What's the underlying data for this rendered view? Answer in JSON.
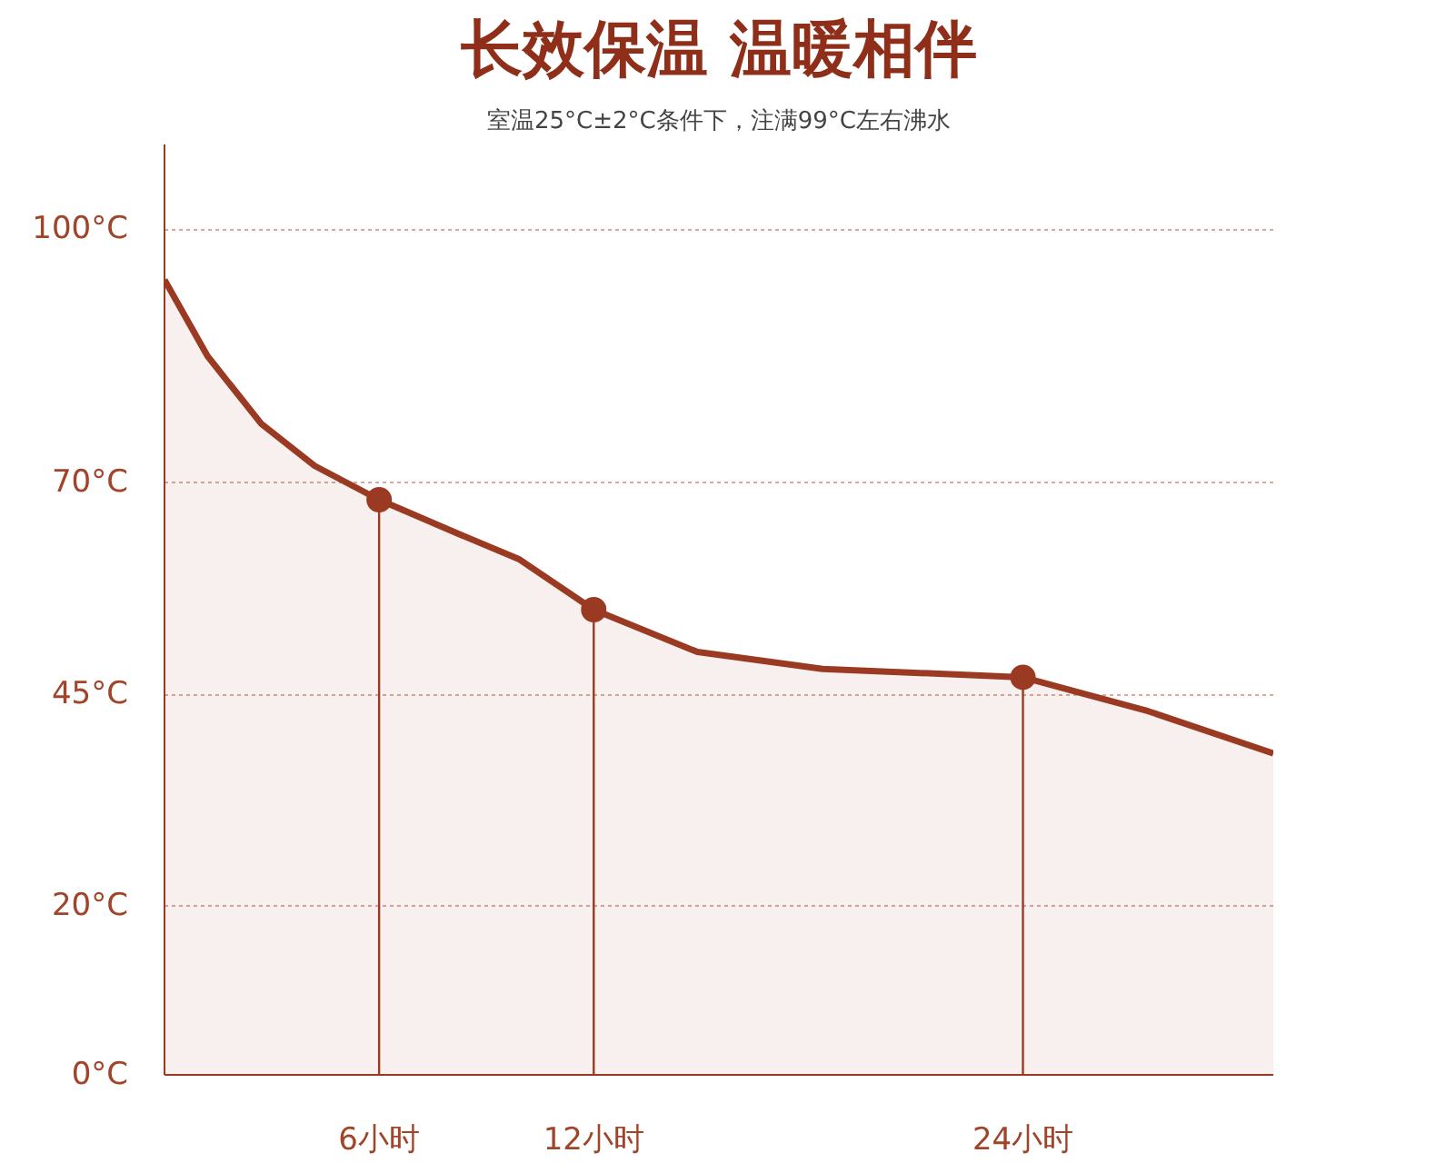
{
  "chart_data": {
    "type": "area",
    "title": "长效保温 温暖相伴",
    "subtitle": "室温25°C±2°C条件下，注满99°C左右沸水",
    "xlim": [
      0,
      31
    ],
    "ylim": [
      0,
      110
    ],
    "xticks": [
      {
        "value": 6,
        "label": "6小时"
      },
      {
        "value": 12,
        "label": "12小时"
      },
      {
        "value": 24,
        "label": "24小时"
      }
    ],
    "yticks": [
      {
        "value": 0,
        "label": "0°C"
      },
      {
        "value": 20,
        "label": "20°C"
      },
      {
        "value": 45,
        "label": "45°C"
      },
      {
        "value": 70,
        "label": "70°C"
      },
      {
        "value": 100,
        "label": "100°C"
      }
    ],
    "grid": "y",
    "line_style": "solid",
    "series": [
      {
        "color": "#9b3a22",
        "x": [
          0,
          1.2,
          2.7,
          4.2,
          6,
          8.2,
          9.9,
          12,
          14.9,
          18.4,
          24,
          27.5,
          31
        ],
        "values": [
          94,
          85,
          77,
          72,
          68,
          64,
          61,
          55,
          50,
          48,
          47,
          43,
          38
        ]
      },
      {
        "type": "lollipop",
        "marker": "circle",
        "color": "#9b3a22",
        "x": [
          6,
          12,
          24
        ],
        "values": [
          68,
          55,
          47
        ]
      }
    ]
  }
}
